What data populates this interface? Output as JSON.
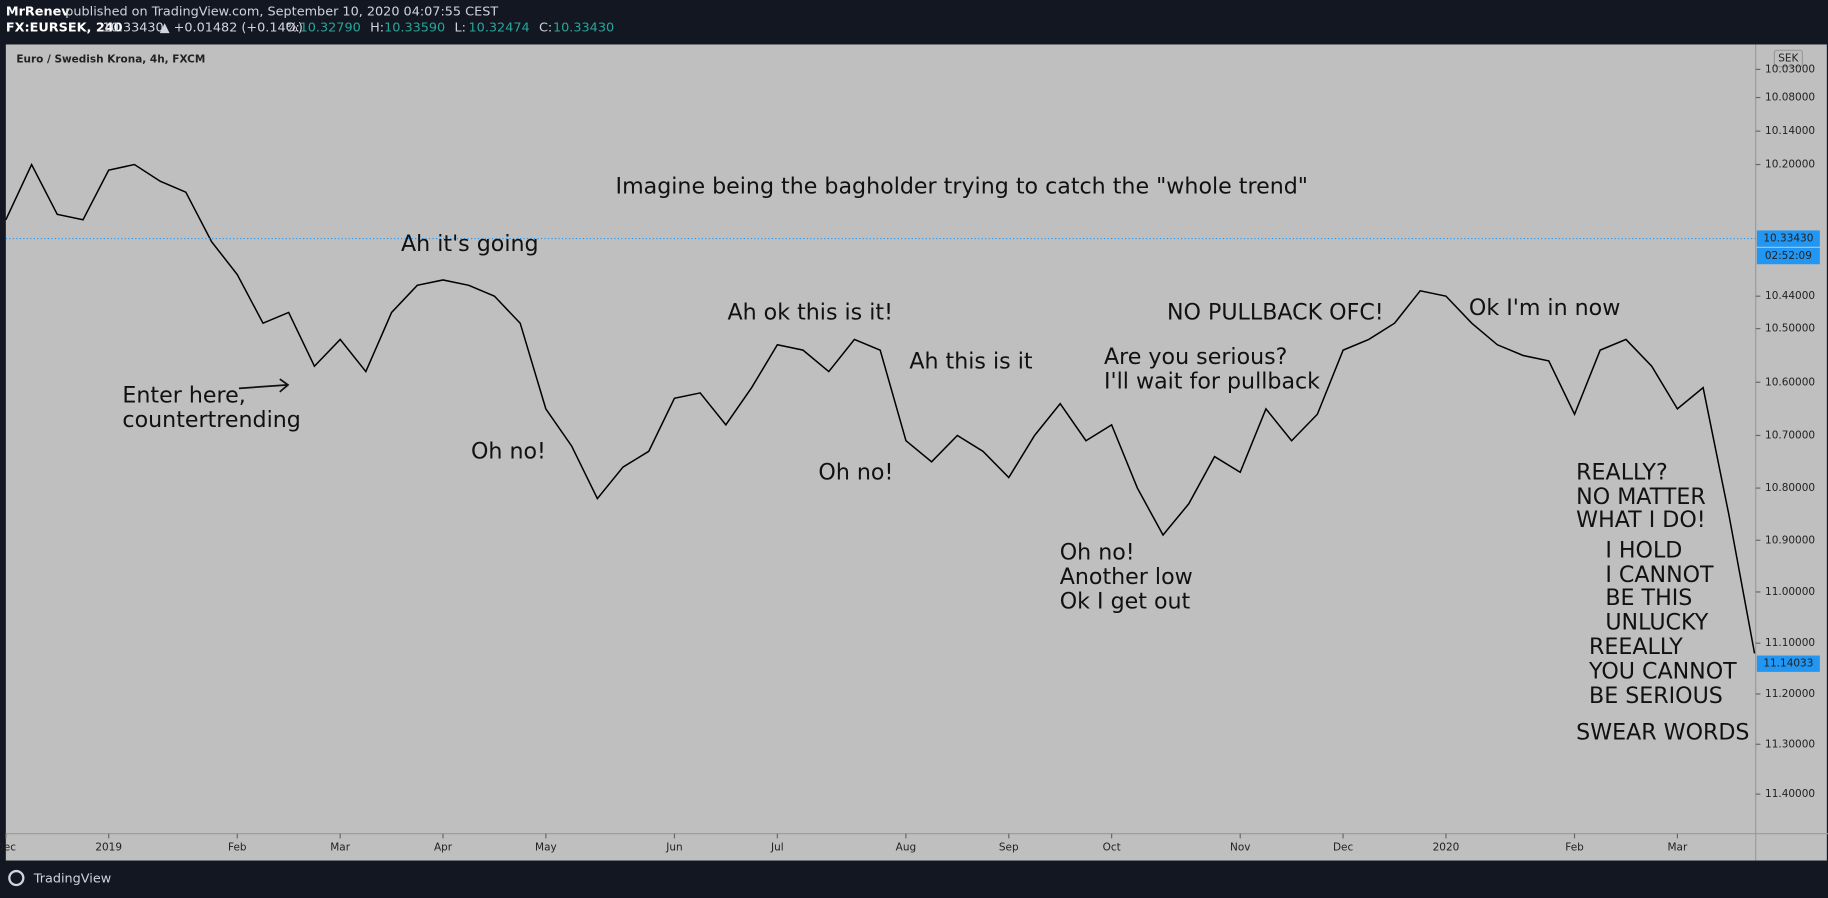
{
  "header": {
    "user": "MrRenev",
    "published": "published on TradingView.com, September 10, 2020 04:07:55 CEST",
    "symbol": "FX:EURSEK, 240",
    "last": "10.33430",
    "change": "▲ +0.01482 (+0.14%)",
    "ohlc": [
      {
        "key": "O:",
        "value": "10.32790"
      },
      {
        "key": "H:",
        "value": "10.33590"
      },
      {
        "key": "L:",
        "value": "10.32474"
      },
      {
        "key": "C:",
        "value": "10.33430"
      }
    ]
  },
  "footer": {
    "brand": "TradingView"
  },
  "chart_data": {
    "type": "line",
    "title": "Euro / Swedish Krona, 4h, FXCM",
    "currency": "SEK",
    "color": "#000000",
    "log": true,
    "inverted": true,
    "ylim": [
      9.99,
      11.48
    ],
    "yticks": [
      {
        "value": 10.03,
        "label": "10.03000"
      },
      {
        "value": 10.08,
        "label": "10.08000"
      },
      {
        "value": 10.14,
        "label": "10.14000"
      },
      {
        "value": 10.2,
        "label": "10.20000"
      },
      {
        "value": 10.44,
        "label": "10.44000"
      },
      {
        "value": 10.5,
        "label": "10.50000"
      },
      {
        "value": 10.6,
        "label": "10.60000"
      },
      {
        "value": 10.7,
        "label": "10.70000"
      },
      {
        "value": 10.8,
        "label": "10.80000"
      },
      {
        "value": 10.9,
        "label": "10.90000"
      },
      {
        "value": 11.0,
        "label": "11.00000"
      },
      {
        "value": 11.1,
        "label": "11.10000"
      },
      {
        "value": 11.2,
        "label": "11.20000"
      },
      {
        "value": 11.3,
        "label": "11.30000"
      },
      {
        "value": 11.4,
        "label": "11.40000"
      }
    ],
    "markers": [
      {
        "value": 10.3343,
        "label": "10.33430",
        "color": "#2196f3"
      },
      {
        "value": 11.14033,
        "label": "11.14033",
        "color": "#2196f3"
      }
    ],
    "countdown": "02:52:09",
    "categories": [
      "Dec",
      null,
      null,
      null,
      "2019",
      null,
      null,
      null,
      null,
      "Feb",
      null,
      null,
      null,
      "Mar",
      null,
      null,
      null,
      "Apr",
      null,
      null,
      null,
      "May",
      null,
      null,
      null,
      null,
      "Jun",
      null,
      null,
      null,
      "Jul",
      null,
      null,
      null,
      null,
      "Aug",
      null,
      null,
      null,
      "Sep",
      null,
      null,
      null,
      "Oct",
      null,
      null,
      null,
      null,
      "Nov",
      null,
      null,
      null,
      "Dec",
      null,
      null,
      null,
      "2020",
      null,
      null,
      null,
      null,
      "Feb",
      null,
      null,
      null,
      "Mar",
      null,
      null,
      null
    ],
    "values": [
      10.3,
      10.2,
      10.29,
      10.3,
      10.21,
      10.2,
      10.23,
      10.25,
      10.34,
      10.4,
      10.49,
      10.47,
      10.57,
      10.52,
      10.58,
      10.47,
      10.42,
      10.41,
      10.42,
      10.44,
      10.49,
      10.65,
      10.72,
      10.82,
      10.76,
      10.73,
      10.63,
      10.62,
      10.68,
      10.61,
      10.53,
      10.54,
      10.58,
      10.52,
      10.54,
      10.71,
      10.75,
      10.7,
      10.73,
      10.78,
      10.7,
      10.64,
      10.71,
      10.68,
      10.8,
      10.89,
      10.83,
      10.74,
      10.77,
      10.65,
      10.71,
      10.66,
      10.54,
      10.52,
      10.49,
      10.43,
      10.44,
      10.49,
      10.53,
      10.55,
      10.56,
      10.66,
      10.54,
      10.52,
      10.57,
      10.65,
      10.61,
      10.85,
      11.12
    ],
    "annotations": [
      "Imagine being the bagholder trying to catch the \"whole trend\"",
      "Ah it's going",
      "Ah ok this is it!",
      "Ah this is it",
      "NO PULLBACK OFC!",
      "Ok I'm in now",
      "Are you serious?",
      "I'll wait for pullback",
      "Enter here,",
      "countertrending",
      "Oh no!",
      "Oh no!",
      "Oh no!",
      "Another low",
      "Ok I get out",
      "REALLY?",
      "NO MATTER",
      "WHAT I DO!",
      "I HOLD",
      "I CANNOT",
      "BE THIS",
      "UNLUCKY",
      "REEALLY",
      "YOU CANNOT",
      "BE SERIOUS",
      "SWEAR WORDS"
    ]
  }
}
